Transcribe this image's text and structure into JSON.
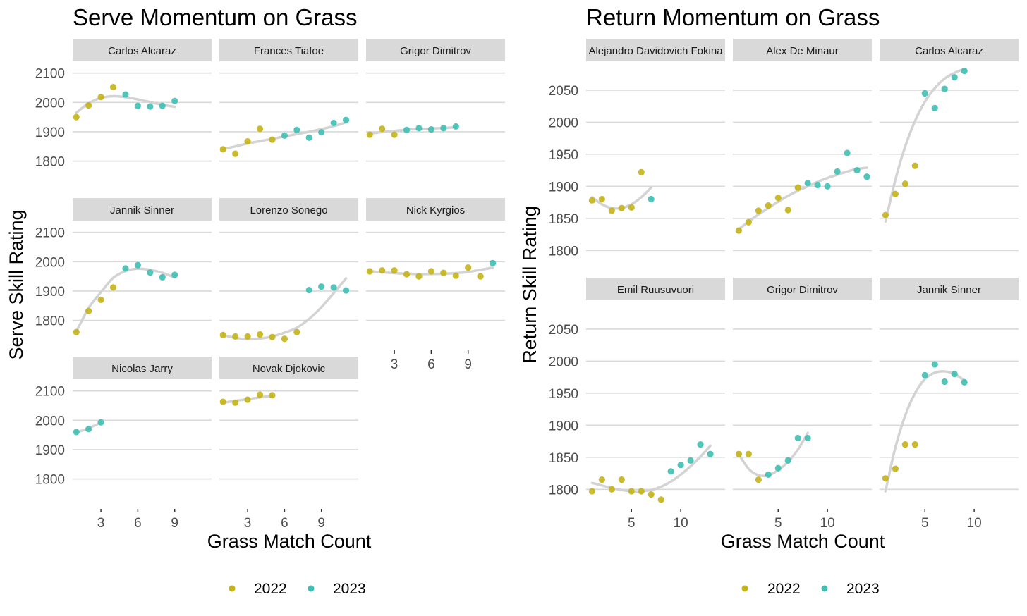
{
  "colors": {
    "2022": "#C4B316",
    "2023": "#3FBFB3",
    "smooth": "#D3D3D3",
    "strip": "#D9D9D9",
    "grid": "#D9D9D9"
  },
  "chart_data": [
    {
      "type": "scatter",
      "title": "Serve Momentum on Grass",
      "xlabel": "Grass Match Count",
      "ylabel": "Serve Skill Rating",
      "legend": [
        "2022",
        "2023"
      ],
      "legend_position": "bottom",
      "ylim": [
        1710,
        2140
      ],
      "xlim": [
        0.7,
        12
      ],
      "yticks": [
        1800,
        1900,
        2000,
        2100
      ],
      "xticks": [
        3,
        6,
        9
      ],
      "ncol": 3,
      "panels": [
        {
          "name": "Carlos Alcaraz",
          "x": [
            1,
            2,
            3,
            4,
            5,
            6,
            7,
            8,
            9
          ],
          "y": [
            1950,
            1990,
            2018,
            2052,
            2027,
            1988,
            1986,
            1988,
            2005
          ],
          "year": [
            "2022",
            "2022",
            "2022",
            "2022",
            "2023",
            "2023",
            "2023",
            "2023",
            "2023"
          ],
          "smooth": [
            1965,
            1997,
            2015,
            2021,
            2018,
            2010,
            2001,
            1992,
            1985
          ]
        },
        {
          "name": "Frances Tiafoe",
          "x": [
            1,
            2,
            3,
            4,
            5,
            6,
            7,
            8,
            9,
            10,
            11
          ],
          "y": [
            1840,
            1825,
            1867,
            1910,
            1873,
            1887,
            1906,
            1880,
            1898,
            1930,
            1940
          ],
          "year": [
            "2022",
            "2022",
            "2022",
            "2022",
            "2022",
            "2023",
            "2023",
            "2023",
            "2023",
            "2023",
            "2023"
          ],
          "smooth": [
            1841,
            1850,
            1860,
            1868,
            1876,
            1884,
            1892,
            1900,
            1909,
            1919,
            1932
          ]
        },
        {
          "name": "Grigor Dimitrov",
          "x": [
            1,
            2,
            3,
            4,
            5,
            6,
            7,
            8
          ],
          "y": [
            1890,
            1910,
            1890,
            1906,
            1912,
            1908,
            1912,
            1918
          ],
          "year": [
            "2022",
            "2022",
            "2022",
            "2023",
            "2023",
            "2023",
            "2023",
            "2023"
          ],
          "smooth": [
            1894,
            1899,
            1903,
            1907,
            1909,
            1911,
            1913,
            1915
          ]
        },
        {
          "name": "Jannik Sinner",
          "x": [
            1,
            2,
            3,
            4,
            5,
            6,
            7,
            8,
            9
          ],
          "y": [
            1760,
            1832,
            1870,
            1912,
            1977,
            1988,
            1963,
            1947,
            1955
          ],
          "year": [
            "2022",
            "2022",
            "2022",
            "2022",
            "2023",
            "2023",
            "2023",
            "2023",
            "2023"
          ],
          "smooth": [
            1762,
            1842,
            1896,
            1945,
            1968,
            1976,
            1972,
            1962,
            1946
          ]
        },
        {
          "name": "Lorenzo Sonego",
          "x": [
            1,
            2,
            3,
            4,
            5,
            6,
            7,
            8,
            9,
            10,
            11
          ],
          "y": [
            1750,
            1745,
            1745,
            1752,
            1743,
            1737,
            1760,
            1903,
            1915,
            1912,
            1902
          ],
          "year": [
            "2022",
            "2022",
            "2022",
            "2022",
            "2022",
            "2022",
            "2022",
            "2023",
            "2023",
            "2023",
            "2023"
          ],
          "smooth": [
            1750,
            1740,
            1736,
            1738,
            1745,
            1758,
            1775,
            1805,
            1845,
            1893,
            1943
          ]
        },
        {
          "name": "Nick Kyrgios",
          "x": [
            1,
            2,
            3,
            4,
            5,
            6,
            7,
            8,
            9,
            10,
            11
          ],
          "y": [
            1967,
            1970,
            1970,
            1957,
            1950,
            1967,
            1962,
            1952,
            1980,
            1950,
            1995
          ],
          "year": [
            "2022",
            "2022",
            "2022",
            "2022",
            "2022",
            "2022",
            "2022",
            "2022",
            "2022",
            "2022",
            "2023"
          ],
          "smooth": [
            1968,
            1964,
            1961,
            1959,
            1958,
            1958,
            1959,
            1961,
            1965,
            1972,
            1980
          ]
        },
        {
          "name": "Nicolas Jarry",
          "x": [
            1,
            2,
            3
          ],
          "y": [
            1960,
            1970,
            1993
          ],
          "year": [
            "2023",
            "2023",
            "2023"
          ],
          "smooth": [
            1958,
            1973,
            1992
          ]
        },
        {
          "name": "Novak Djokovic",
          "x": [
            1,
            2,
            3,
            4,
            5
          ],
          "y": [
            2063,
            2060,
            2070,
            2087,
            2085
          ],
          "year": [
            "2022",
            "2022",
            "2022",
            "2022",
            "2022"
          ],
          "smooth": [
            2060,
            2066,
            2072,
            2078,
            2083
          ]
        }
      ]
    },
    {
      "type": "scatter",
      "title": "Return Momentum on Grass",
      "xlabel": "Grass Match Count",
      "ylabel": "Return Skill Rating",
      "legend": [
        "2022",
        "2023"
      ],
      "legend_position": "bottom",
      "ylim": [
        1775,
        2095
      ],
      "xlim": [
        0.4,
        14.5
      ],
      "yticks": [
        1800,
        1850,
        1900,
        1950,
        2000,
        2050
      ],
      "xticks": [
        5,
        10
      ],
      "ncol": 3,
      "panels": [
        {
          "name": "Alejandro Davidovich Fokina",
          "x": [
            1,
            2,
            3,
            4,
            5,
            6,
            7
          ],
          "y": [
            1878,
            1880,
            1862,
            1866,
            1867,
            1922,
            1880
          ],
          "year": [
            "2022",
            "2022",
            "2022",
            "2022",
            "2022",
            "2022",
            "2023"
          ],
          "smooth": [
            1883,
            1872,
            1866,
            1866,
            1872,
            1883,
            1898
          ]
        },
        {
          "name": "Alex De Minaur",
          "x": [
            1,
            2,
            3,
            4,
            5,
            6,
            7,
            8,
            9,
            10,
            11,
            12,
            13,
            14
          ],
          "y": [
            1831,
            1844,
            1862,
            1870,
            1882,
            1863,
            1898,
            1905,
            1902,
            1900,
            1923,
            1952,
            1925,
            1915
          ],
          "year": [
            "2022",
            "2022",
            "2022",
            "2022",
            "2022",
            "2022",
            "2022",
            "2023",
            "2023",
            "2023",
            "2023",
            "2023",
            "2023",
            "2023"
          ],
          "smooth": [
            1833,
            1845,
            1856,
            1866,
            1876,
            1885,
            1893,
            1900,
            1907,
            1913,
            1918,
            1923,
            1927,
            1929
          ]
        },
        {
          "name": "Carlos Alcaraz",
          "x": [
            1,
            2,
            3,
            4,
            5,
            6,
            7,
            8,
            9
          ],
          "y": [
            1855,
            1888,
            1904,
            1932,
            2045,
            2022,
            2052,
            2070,
            2080
          ],
          "year": [
            "2022",
            "2022",
            "2022",
            "2022",
            "2023",
            "2023",
            "2023",
            "2023",
            "2023"
          ],
          "smooth": [
            1845,
            1910,
            1962,
            2002,
            2032,
            2053,
            2068,
            2077,
            2083
          ]
        },
        {
          "name": "Emil Ruusuvuori",
          "x": [
            1,
            2,
            3,
            4,
            5,
            6,
            7,
            8,
            9,
            10,
            11,
            12,
            13
          ],
          "y": [
            1797,
            1815,
            1800,
            1815,
            1797,
            1797,
            1792,
            1784,
            1828,
            1838,
            1845,
            1870,
            1855
          ],
          "year": [
            "2022",
            "2022",
            "2022",
            "2022",
            "2022",
            "2022",
            "2022",
            "2022",
            "2023",
            "2023",
            "2023",
            "2023",
            "2023"
          ],
          "smooth": [
            1810,
            1806,
            1802,
            1799,
            1797,
            1797,
            1799,
            1804,
            1812,
            1823,
            1836,
            1851,
            1868
          ]
        },
        {
          "name": "Grigor Dimitrov",
          "x": [
            1,
            2,
            3,
            4,
            5,
            6,
            7,
            8
          ],
          "y": [
            1855,
            1855,
            1815,
            1823,
            1833,
            1845,
            1880,
            1880
          ],
          "year": [
            "2022",
            "2022",
            "2022",
            "2023",
            "2023",
            "2023",
            "2023",
            "2023"
          ],
          "smooth": [
            1855,
            1832,
            1822,
            1822,
            1830,
            1843,
            1862,
            1888
          ]
        },
        {
          "name": "Jannik Sinner",
          "x": [
            1,
            2,
            3,
            4,
            5,
            6,
            7,
            8,
            9
          ],
          "y": [
            1817,
            1832,
            1870,
            1870,
            1978,
            1995,
            1968,
            1980,
            1967
          ],
          "year": [
            "2022",
            "2022",
            "2022",
            "2022",
            "2023",
            "2023",
            "2023",
            "2023",
            "2023"
          ],
          "smooth": [
            1797,
            1865,
            1915,
            1950,
            1972,
            1982,
            1984,
            1980,
            1970
          ]
        }
      ]
    }
  ]
}
